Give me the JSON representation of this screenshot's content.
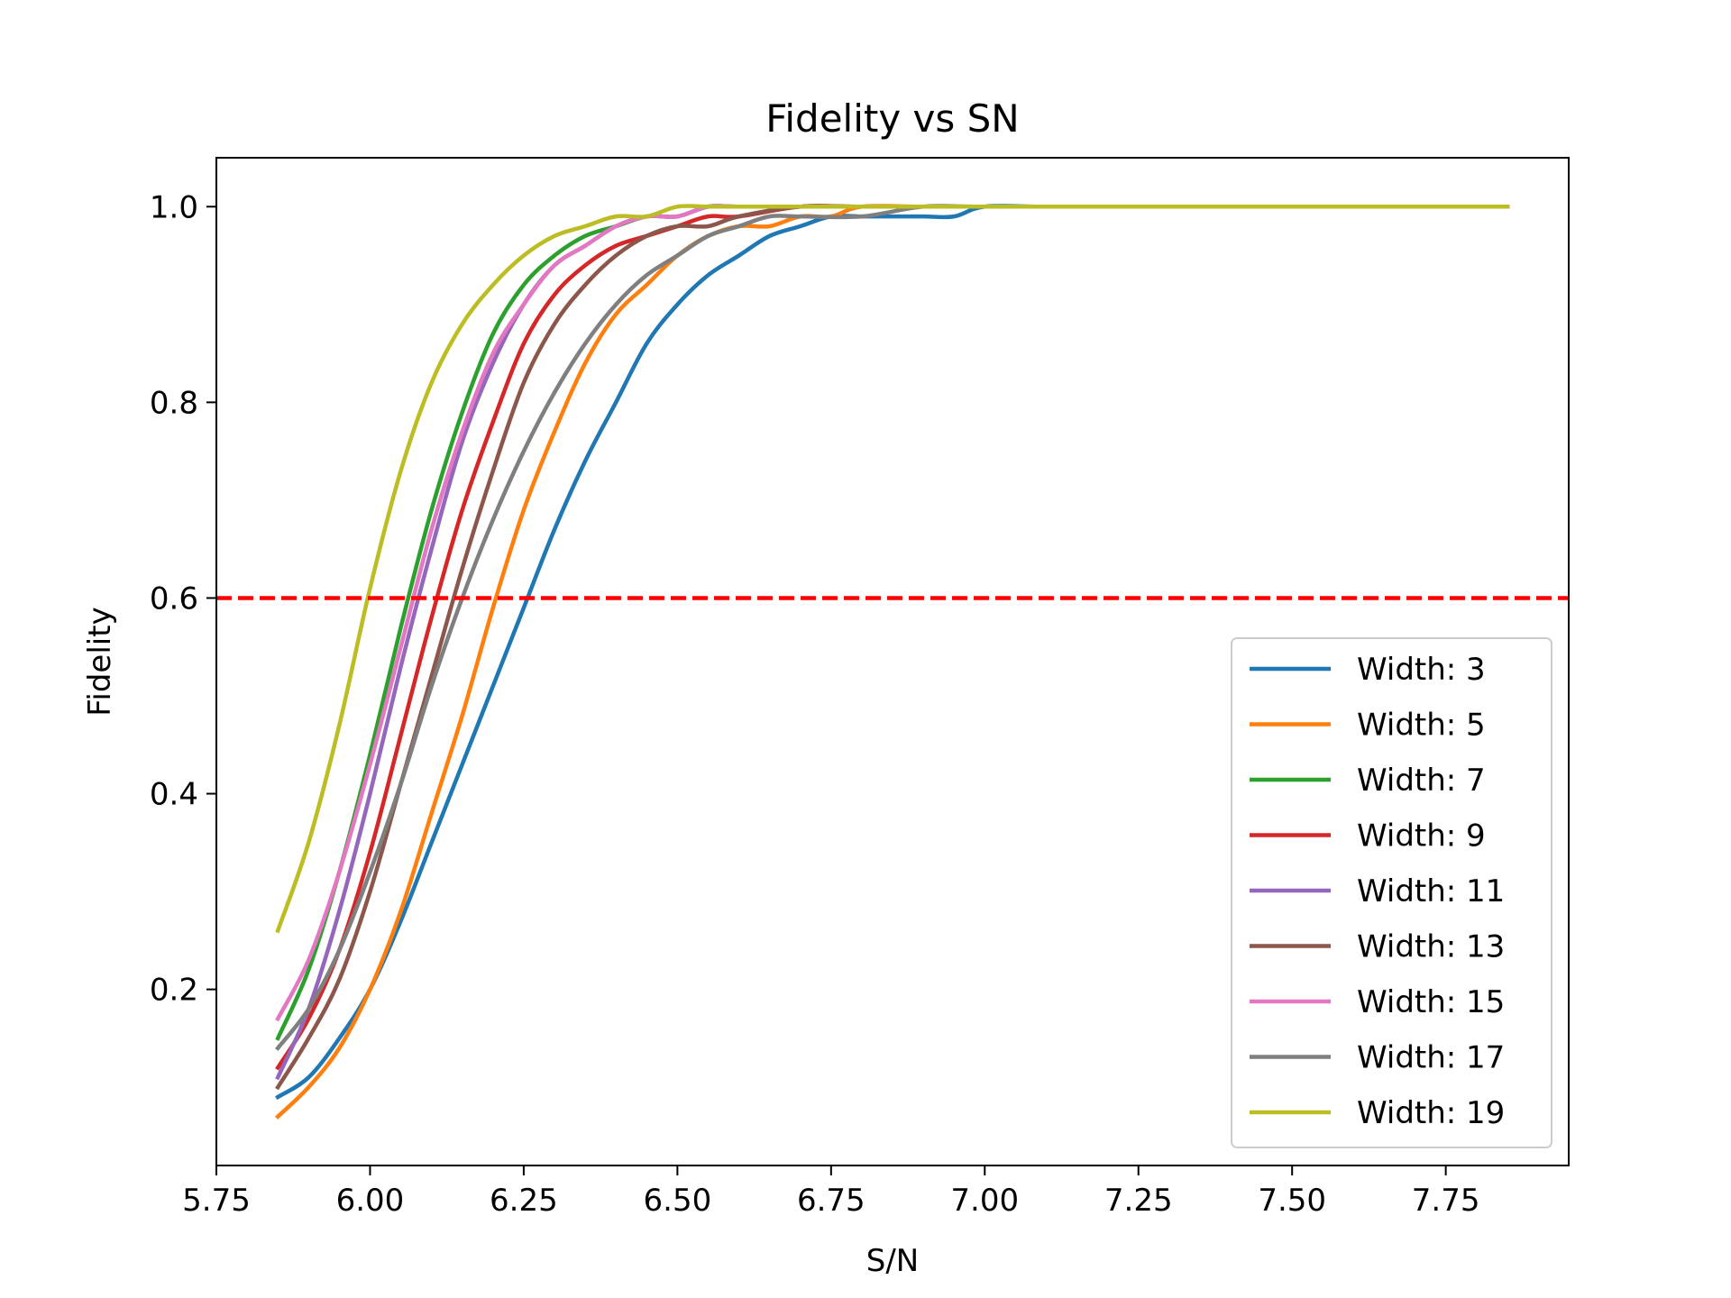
{
  "chart_data": {
    "type": "line",
    "title": "Fidelity vs SN",
    "xlabel": "S/N",
    "ylabel": "Fidelity",
    "xlim": [
      5.75,
      7.95
    ],
    "ylim": [
      0.02,
      1.05
    ],
    "xticks": [
      5.75,
      6.0,
      6.25,
      6.5,
      6.75,
      7.0,
      7.25,
      7.5,
      7.75
    ],
    "xtick_labels": [
      "5.75",
      "6.00",
      "6.25",
      "6.50",
      "6.75",
      "7.00",
      "7.25",
      "7.50",
      "7.75"
    ],
    "yticks": [
      0.2,
      0.4,
      0.6,
      0.8,
      1.0
    ],
    "ytick_labels": [
      "0.2",
      "0.4",
      "0.6",
      "0.8",
      "1.0"
    ],
    "grid": false,
    "legend_position": "lower-right",
    "threshold_line": {
      "y": 0.6,
      "color": "#ff0000",
      "style": "dashed"
    },
    "series": [
      {
        "name": "Width: 3",
        "color": "#1f77b4",
        "x": [
          5.85,
          5.9,
          5.95,
          6.0,
          6.05,
          6.1,
          6.15,
          6.2,
          6.25,
          6.3,
          6.35,
          6.4,
          6.45,
          6.5,
          6.55,
          6.6,
          6.65,
          6.7,
          6.75,
          6.8,
          6.85,
          6.9,
          6.95,
          7.0,
          7.1,
          7.25,
          7.5,
          7.75,
          7.85
        ],
        "y": [
          0.09,
          0.11,
          0.15,
          0.2,
          0.27,
          0.35,
          0.43,
          0.51,
          0.59,
          0.67,
          0.74,
          0.8,
          0.86,
          0.9,
          0.93,
          0.95,
          0.97,
          0.98,
          0.99,
          0.99,
          0.99,
          0.99,
          0.99,
          1.0,
          1.0,
          1.0,
          1.0,
          1.0,
          1.0
        ]
      },
      {
        "name": "Width: 5",
        "color": "#ff7f0e",
        "x": [
          5.85,
          5.9,
          5.95,
          6.0,
          6.05,
          6.1,
          6.15,
          6.2,
          6.25,
          6.3,
          6.35,
          6.4,
          6.45,
          6.5,
          6.55,
          6.6,
          6.65,
          6.7,
          6.75,
          6.8,
          6.9,
          7.0,
          7.25,
          7.5,
          7.75,
          7.85
        ],
        "y": [
          0.07,
          0.1,
          0.14,
          0.2,
          0.28,
          0.38,
          0.48,
          0.59,
          0.69,
          0.77,
          0.84,
          0.89,
          0.92,
          0.95,
          0.97,
          0.98,
          0.98,
          0.99,
          0.99,
          1.0,
          1.0,
          1.0,
          1.0,
          1.0,
          1.0,
          1.0
        ]
      },
      {
        "name": "Width: 7",
        "color": "#2ca02c",
        "x": [
          5.85,
          5.9,
          5.95,
          6.0,
          6.05,
          6.1,
          6.15,
          6.2,
          6.25,
          6.3,
          6.35,
          6.4,
          6.45,
          6.5,
          6.55,
          6.6,
          6.7,
          6.8,
          7.0,
          7.25,
          7.5,
          7.75,
          7.85
        ],
        "y": [
          0.15,
          0.22,
          0.32,
          0.44,
          0.57,
          0.69,
          0.79,
          0.87,
          0.92,
          0.95,
          0.97,
          0.98,
          0.99,
          0.99,
          1.0,
          1.0,
          1.0,
          1.0,
          1.0,
          1.0,
          1.0,
          1.0,
          1.0
        ]
      },
      {
        "name": "Width: 9",
        "color": "#d62728",
        "x": [
          5.85,
          5.9,
          5.95,
          6.0,
          6.05,
          6.1,
          6.15,
          6.2,
          6.25,
          6.3,
          6.35,
          6.4,
          6.45,
          6.5,
          6.55,
          6.6,
          6.7,
          6.8,
          7.0,
          7.25,
          7.5,
          7.75,
          7.85
        ],
        "y": [
          0.12,
          0.17,
          0.24,
          0.34,
          0.46,
          0.58,
          0.69,
          0.78,
          0.86,
          0.91,
          0.94,
          0.96,
          0.97,
          0.98,
          0.99,
          0.99,
          1.0,
          1.0,
          1.0,
          1.0,
          1.0,
          1.0,
          1.0
        ]
      },
      {
        "name": "Width: 11",
        "color": "#9467bd",
        "x": [
          5.85,
          5.9,
          5.95,
          6.0,
          6.05,
          6.1,
          6.15,
          6.2,
          6.25,
          6.3,
          6.35,
          6.4,
          6.45,
          6.5,
          6.55,
          6.6,
          6.7,
          6.8,
          7.0,
          7.25,
          7.5,
          7.75,
          7.85
        ],
        "y": [
          0.11,
          0.18,
          0.28,
          0.4,
          0.53,
          0.65,
          0.76,
          0.84,
          0.9,
          0.94,
          0.96,
          0.98,
          0.99,
          0.99,
          1.0,
          1.0,
          1.0,
          1.0,
          1.0,
          1.0,
          1.0,
          1.0,
          1.0
        ]
      },
      {
        "name": "Width: 13",
        "color": "#8c564b",
        "x": [
          5.85,
          5.9,
          5.95,
          6.0,
          6.05,
          6.1,
          6.15,
          6.2,
          6.25,
          6.3,
          6.35,
          6.4,
          6.45,
          6.5,
          6.55,
          6.6,
          6.7,
          6.8,
          7.0,
          7.25,
          7.5,
          7.75,
          7.85
        ],
        "y": [
          0.1,
          0.15,
          0.21,
          0.3,
          0.41,
          0.52,
          0.63,
          0.73,
          0.82,
          0.88,
          0.92,
          0.95,
          0.97,
          0.98,
          0.98,
          0.99,
          1.0,
          1.0,
          1.0,
          1.0,
          1.0,
          1.0,
          1.0
        ]
      },
      {
        "name": "Width: 15",
        "color": "#e377c2",
        "x": [
          5.85,
          5.9,
          5.95,
          6.0,
          6.05,
          6.1,
          6.15,
          6.2,
          6.25,
          6.3,
          6.35,
          6.4,
          6.45,
          6.5,
          6.55,
          6.6,
          6.7,
          6.8,
          7.0,
          7.25,
          7.5,
          7.75,
          7.85
        ],
        "y": [
          0.17,
          0.23,
          0.32,
          0.43,
          0.55,
          0.67,
          0.77,
          0.85,
          0.9,
          0.94,
          0.96,
          0.98,
          0.99,
          0.99,
          1.0,
          1.0,
          1.0,
          1.0,
          1.0,
          1.0,
          1.0,
          1.0,
          1.0
        ]
      },
      {
        "name": "Width: 17",
        "color": "#7f7f7f",
        "x": [
          5.85,
          5.9,
          5.95,
          6.0,
          6.05,
          6.1,
          6.15,
          6.2,
          6.25,
          6.3,
          6.35,
          6.4,
          6.45,
          6.5,
          6.55,
          6.6,
          6.65,
          6.7,
          6.8,
          6.9,
          7.0,
          7.25,
          7.5,
          7.75,
          7.85
        ],
        "y": [
          0.14,
          0.18,
          0.24,
          0.32,
          0.41,
          0.51,
          0.6,
          0.68,
          0.75,
          0.81,
          0.86,
          0.9,
          0.93,
          0.95,
          0.97,
          0.98,
          0.99,
          0.99,
          0.99,
          1.0,
          1.0,
          1.0,
          1.0,
          1.0,
          1.0
        ]
      },
      {
        "name": "Width: 19",
        "color": "#bcbd22",
        "x": [
          5.85,
          5.9,
          5.95,
          6.0,
          6.05,
          6.1,
          6.15,
          6.2,
          6.25,
          6.3,
          6.35,
          6.4,
          6.45,
          6.5,
          6.55,
          6.6,
          6.7,
          6.8,
          7.0,
          7.25,
          7.5,
          7.75,
          7.85
        ],
        "y": [
          0.26,
          0.35,
          0.47,
          0.61,
          0.73,
          0.82,
          0.88,
          0.92,
          0.95,
          0.97,
          0.98,
          0.99,
          0.99,
          1.0,
          1.0,
          1.0,
          1.0,
          1.0,
          1.0,
          1.0,
          1.0,
          1.0,
          1.0
        ]
      }
    ]
  }
}
